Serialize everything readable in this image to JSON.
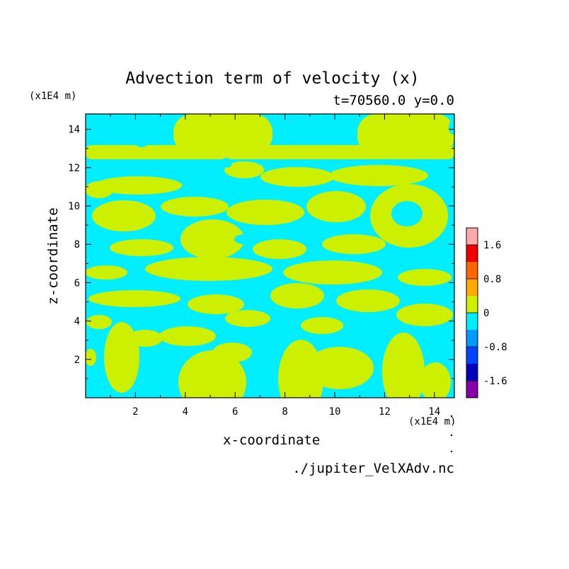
{
  "chart_data": {
    "type": "heatmap",
    "title": "Advection term of velocity (x)",
    "subtitle": "t=70560.0 y=0.0",
    "xlabel": "x-coordinate",
    "ylabel": "z-coordinate",
    "x_unit": "(x1E4 m)",
    "y_unit": "(x1E4 m)",
    "xlim": [
      0,
      14.8
    ],
    "ylim": [
      0,
      14.8
    ],
    "x_ticks": [
      "2",
      "4",
      "6",
      "8",
      "10",
      "12",
      "14"
    ],
    "y_ticks": [
      "2",
      "4",
      "6",
      "8",
      "10",
      "12",
      "14"
    ],
    "colorbar": {
      "labels": [
        "1.6",
        "0.8",
        "0",
        "-0.8",
        "-1.6"
      ],
      "levels": [
        {
          "range": "< -1.6",
          "color": "#8800aa"
        },
        {
          "range": "-1.6 – -1.2",
          "color": "#0000bb"
        },
        {
          "range": "-1.2 – -0.8",
          "color": "#0044ff"
        },
        {
          "range": "-0.8 – -0.4",
          "color": "#0099ff"
        },
        {
          "range": "-0.4 – 0",
          "color": "#00eeff"
        },
        {
          "range": "0 – 0.4",
          "color": "#ccf000"
        },
        {
          "range": "0.4 – 0.8",
          "color": "#ffaa00"
        },
        {
          "range": "0.8 – 1.2",
          "color": "#ff6600"
        },
        {
          "range": "1.2 – 1.6",
          "color": "#ee0000"
        },
        {
          "range": "> 1.6",
          "color": "#ffaaaa"
        }
      ]
    },
    "field_colors": {
      "negative": "#00eeff",
      "positive": "#ccf000"
    }
  },
  "source_file": "./jupiter_VelXAdv.nc"
}
